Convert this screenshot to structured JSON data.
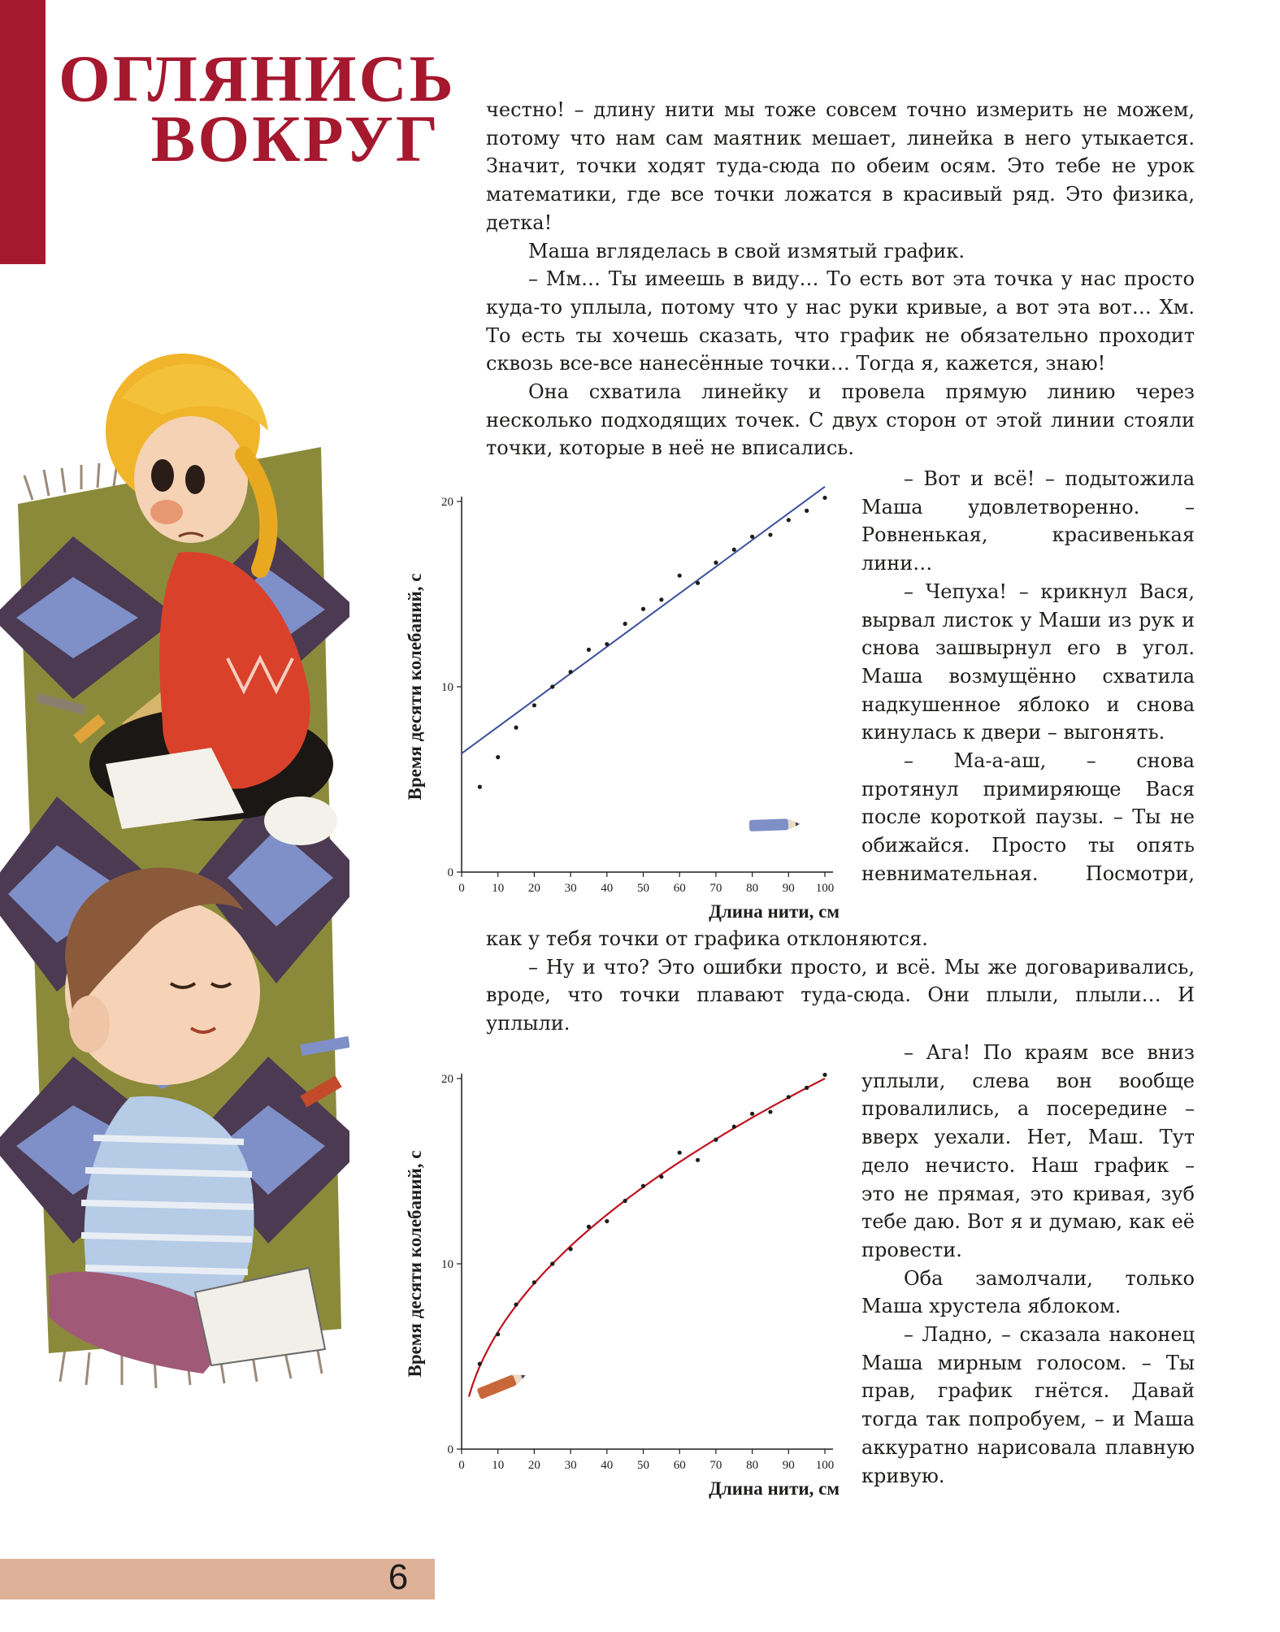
{
  "section_title": {
    "line1": "ОГЛЯНИСЬ",
    "line2": "ВОКРУГ"
  },
  "page_number": "6",
  "colors": {
    "accent": "#a5182e",
    "footer": "#deb199",
    "fit_line": "#3b4f9c",
    "fit_curve": "#c1121f"
  },
  "illustration": {
    "icon": "children-on-rug-illustration"
  },
  "text_block_1": [
    "честно! – длину нити мы тоже совсем точно измерить не можем, потому что нам сам маятник мешает, линейка в него утыкается. Значит, точки ходят туда-сюда по обеим осям. Это тебе не урок математики, где все точки ложатся в красивый ряд. Это физика, детка!",
    "Маша вгляделась в свой измятый график.",
    "– Мм… Ты имеешь в виду… То есть вот эта точка у нас просто куда-то уплыла, потому что у нас руки кривые, а вот эта вот… Хм. То есть ты хочешь сказать, что график не обязательно проходит сквозь все-все нанесённые точки… Тогда я, кажется, знаю!",
    "Она схватила линейку и провела прямую линию через несколько подходящих точек. С двух сторон от этой линии стояли точки, которые в неё не вписались."
  ],
  "text_block_2": [
    "– Вот и всё! – подытожила Маша удовлетворенно. – Ровненькая, красивенькая лини…",
    "– Чепуха! – крикнул Вася, вырвал листок у Маши из рук и снова зашвырнул его в угол. Маша возмущённо схватила надкушенное яблоко и снова кинулась к двери – выгонять.",
    "– Ма-а-аш, – снова протянул примиряюще Вася после короткой паузы. – Ты не обижайся. Просто ты опять невнимательная. Посмотри,"
  ],
  "text_block_3": [
    "как у тебя точки от графика отклоняются.",
    "– Ну и что? Это ошибки просто, и всё. Мы же договаривались, вроде, что точки плавают туда-сюда. Они плыли, плыли… И уплыли."
  ],
  "text_block_4": [
    "– Ага! По краям все вниз уплыли, слева вон вообще провалились, а посередине – вверх уехали. Нет, Маш. Тут дело нечисто. Наш график – это не прямая, это кривая, зуб тебе даю. Вот я и думаю, как её провести.",
    "Оба замолчали, только Маша хрустела яблоком.",
    "– Ладно, – сказала наконец Маша мирным голосом. – Ты прав, график гнётся. Давай тогда так попробуем, – и Маша аккуратно нарисовала плавную кривую."
  ],
  "chart_data": [
    {
      "type": "scatter",
      "xlabel": "Длина нити, см",
      "ylabel": "Время десяти колебаний, с",
      "xlim": [
        0,
        100
      ],
      "ylim": [
        0,
        20
      ],
      "xticks": [
        "0",
        "10",
        "20",
        "30",
        "40",
        "50",
        "60",
        "70",
        "80",
        "90",
        "100"
      ],
      "yticks": [
        "0",
        "10",
        "20"
      ],
      "points": [
        [
          5,
          4.6
        ],
        [
          10,
          6.2
        ],
        [
          15,
          7.8
        ],
        [
          20,
          9.0
        ],
        [
          25,
          10.0
        ],
        [
          30,
          10.8
        ],
        [
          35,
          12.0
        ],
        [
          40,
          12.3
        ],
        [
          45,
          13.4
        ],
        [
          50,
          14.2
        ],
        [
          55,
          14.7
        ],
        [
          60,
          16.0
        ],
        [
          65,
          15.6
        ],
        [
          70,
          16.7
        ],
        [
          75,
          17.4
        ],
        [
          80,
          18.1
        ],
        [
          85,
          18.2
        ],
        [
          90,
          19.0
        ],
        [
          95,
          19.5
        ],
        [
          100,
          20.2
        ]
      ],
      "fit": {
        "type": "line",
        "from": [
          0,
          6.4
        ],
        "to": [
          100,
          20.8
        ]
      },
      "icon": "pencil-icon"
    },
    {
      "type": "scatter",
      "xlabel": "Длина нити, см",
      "ylabel": "Время десяти колебаний, с",
      "xlim": [
        0,
        100
      ],
      "ylim": [
        0,
        20
      ],
      "xticks": [
        "0",
        "10",
        "20",
        "30",
        "40",
        "50",
        "60",
        "70",
        "80",
        "90",
        "100"
      ],
      "yticks": [
        "0",
        "10",
        "20"
      ],
      "points": [
        [
          5,
          4.6
        ],
        [
          10,
          6.2
        ],
        [
          15,
          7.8
        ],
        [
          20,
          9.0
        ],
        [
          25,
          10.0
        ],
        [
          30,
          10.8
        ],
        [
          35,
          12.0
        ],
        [
          40,
          12.3
        ],
        [
          45,
          13.4
        ],
        [
          50,
          14.2
        ],
        [
          55,
          14.7
        ],
        [
          60,
          16.0
        ],
        [
          65,
          15.6
        ],
        [
          70,
          16.7
        ],
        [
          75,
          17.4
        ],
        [
          80,
          18.1
        ],
        [
          85,
          18.2
        ],
        [
          90,
          19.0
        ],
        [
          95,
          19.5
        ],
        [
          100,
          20.2
        ]
      ],
      "fit": {
        "type": "sqrt_curve",
        "coefficient": 2.0,
        "x_from": 2,
        "x_to": 100
      },
      "icon": "pencil-icon"
    }
  ]
}
